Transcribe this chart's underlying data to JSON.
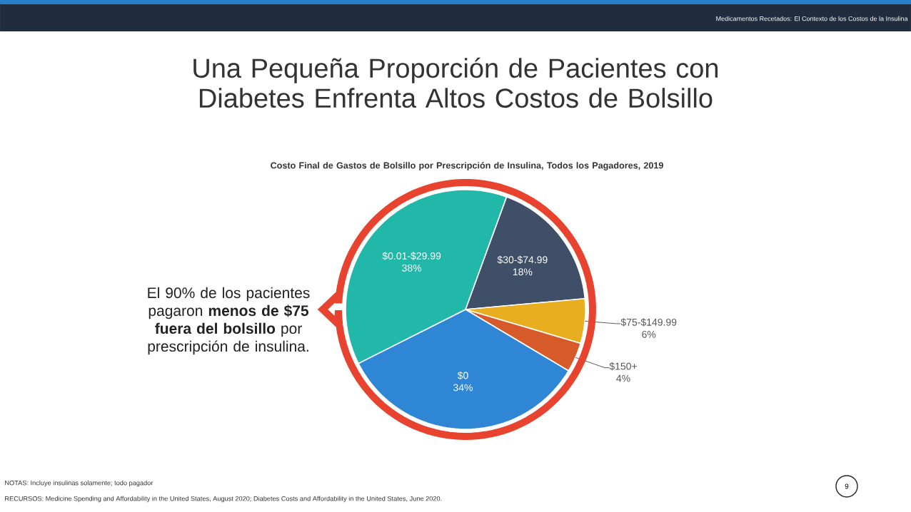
{
  "chart_data": {
    "type": "pie",
    "title": "Una Pequeña Proporción de Pacientes con Diabetes Enfrenta Altos Costos de Bolsillo",
    "subtitle": "Costo Final de Gastos de Bolsillo por Prescripción de Insulina, Todos los Pagadores, 2019",
    "categories": [
      "$30-$74.99",
      "$75-$149.99",
      "$150+",
      "$0",
      "$0.01-$29.99"
    ],
    "values": [
      18,
      6,
      4,
      34,
      38
    ],
    "colors": [
      "#3e4f67",
      "#e8ae20",
      "#d65a2a",
      "#2e86d4",
      "#21b8a9"
    ],
    "value_labels": [
      "18%",
      "6%",
      "4%",
      "34%",
      "38%"
    ],
    "annotations": [
      "Medicamentos Recetados: El Contexto de los Costos de la Insulina",
      "El 90% de los pacientes pagaron **menos de $75 fuera del bolsillo** por prescripción de insulina.",
      "NOTAS: Incluye insulinas solamente; todo pagador",
      "RECURSOS: Medicine Spending and Affordability in the United States, August 2020; Diabetes Costs and Affordability in the United States, June 2020.",
      "9"
    ]
  }
}
